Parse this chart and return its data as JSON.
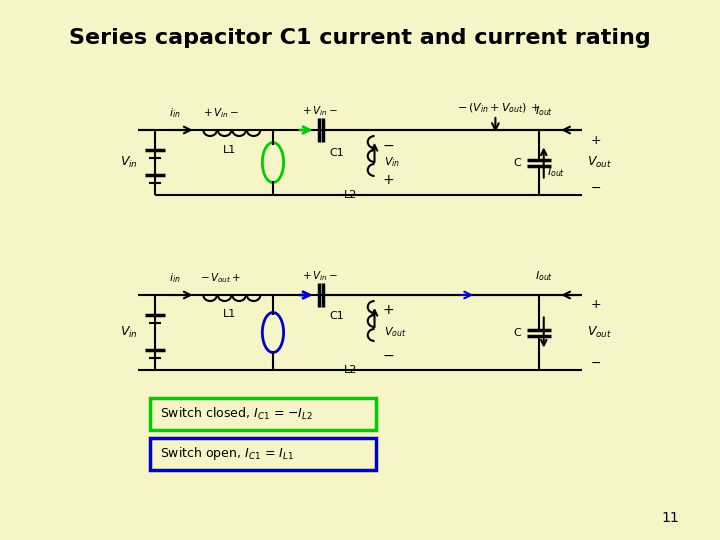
{
  "title": "Series capacitor C1 current and current rating",
  "bg_color": "#f5f5c8",
  "title_color": "#000000",
  "title_fontsize": 16,
  "green_color": "#00cc00",
  "blue_color": "#0000cc",
  "black_color": "#000000",
  "dark_arrow_color": "#006600",
  "page_number": "11",
  "switch_closed_text": "Switch closed, I",
  "switch_open_text": "Switch open, I",
  "switch_closed_box_color": "#00cc00",
  "switch_open_box_color": "#0000cc"
}
